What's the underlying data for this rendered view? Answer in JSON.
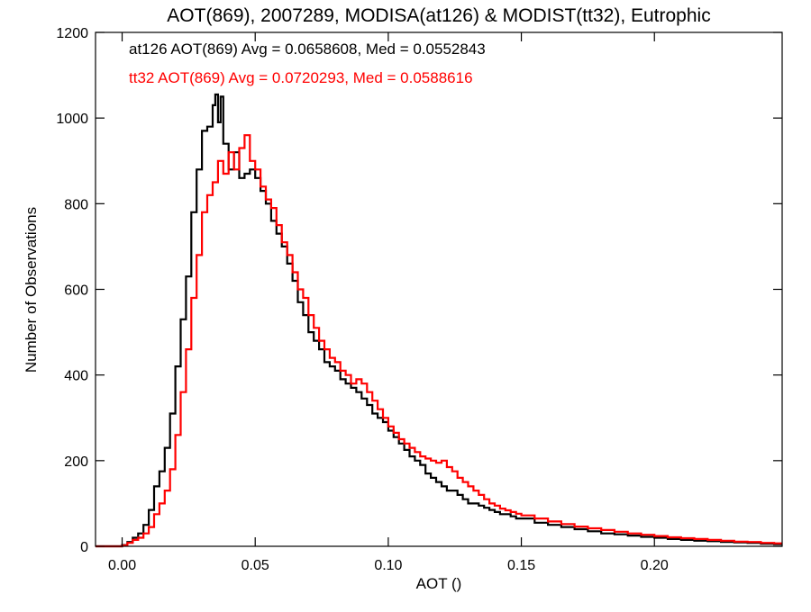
{
  "chart_data": {
    "type": "line",
    "title": "AOT(869), 2007289, MODISA(at126) & MODIST(tt32), Eutrophic",
    "xlabel": "AOT ()",
    "ylabel": "Number of Observations",
    "xlim": [
      -0.01,
      0.248
    ],
    "ylim": [
      0,
      1200
    ],
    "xticks": [
      0.0,
      0.05,
      0.1,
      0.15,
      0.2
    ],
    "xtick_labels": [
      "0.00",
      "0.05",
      "0.10",
      "0.15",
      "0.20"
    ],
    "yticks": [
      0,
      200,
      400,
      600,
      800,
      1000,
      1200
    ],
    "ytick_labels": [
      "0",
      "200",
      "400",
      "600",
      "800",
      "1000",
      "1200"
    ],
    "grid": false,
    "legend_position": "top-left",
    "series": [
      {
        "label": "at126 AOT(869) Avg = 0.0658608, Med = 0.0552843",
        "color": "#000000",
        "points": [
          [
            -0.01,
            0
          ],
          [
            -0.002,
            0
          ],
          [
            0.0,
            3
          ],
          [
            0.002,
            10
          ],
          [
            0.004,
            20
          ],
          [
            0.006,
            30
          ],
          [
            0.008,
            50
          ],
          [
            0.01,
            85
          ],
          [
            0.012,
            140
          ],
          [
            0.014,
            175
          ],
          [
            0.016,
            230
          ],
          [
            0.018,
            310
          ],
          [
            0.02,
            420
          ],
          [
            0.022,
            530
          ],
          [
            0.024,
            630
          ],
          [
            0.026,
            780
          ],
          [
            0.028,
            880
          ],
          [
            0.03,
            970
          ],
          [
            0.032,
            980
          ],
          [
            0.034,
            1030
          ],
          [
            0.035,
            1055
          ],
          [
            0.036,
            990
          ],
          [
            0.037,
            1050
          ],
          [
            0.038,
            940
          ],
          [
            0.04,
            880
          ],
          [
            0.042,
            920
          ],
          [
            0.044,
            860
          ],
          [
            0.046,
            870
          ],
          [
            0.048,
            880
          ],
          [
            0.05,
            860
          ],
          [
            0.052,
            830
          ],
          [
            0.054,
            800
          ],
          [
            0.056,
            760
          ],
          [
            0.058,
            730
          ],
          [
            0.06,
            700
          ],
          [
            0.062,
            660
          ],
          [
            0.064,
            620
          ],
          [
            0.066,
            570
          ],
          [
            0.068,
            540
          ],
          [
            0.07,
            500
          ],
          [
            0.072,
            480
          ],
          [
            0.074,
            460
          ],
          [
            0.076,
            430
          ],
          [
            0.078,
            420
          ],
          [
            0.08,
            410
          ],
          [
            0.082,
            390
          ],
          [
            0.084,
            380
          ],
          [
            0.086,
            370
          ],
          [
            0.088,
            360
          ],
          [
            0.09,
            345
          ],
          [
            0.092,
            330
          ],
          [
            0.094,
            310
          ],
          [
            0.096,
            300
          ],
          [
            0.098,
            290
          ],
          [
            0.1,
            270
          ],
          [
            0.102,
            255
          ],
          [
            0.104,
            240
          ],
          [
            0.106,
            225
          ],
          [
            0.108,
            210
          ],
          [
            0.11,
            200
          ],
          [
            0.112,
            190
          ],
          [
            0.114,
            170
          ],
          [
            0.116,
            160
          ],
          [
            0.118,
            150
          ],
          [
            0.12,
            140
          ],
          [
            0.122,
            130
          ],
          [
            0.124,
            130
          ],
          [
            0.126,
            120
          ],
          [
            0.128,
            110
          ],
          [
            0.13,
            100
          ],
          [
            0.132,
            100
          ],
          [
            0.134,
            95
          ],
          [
            0.136,
            90
          ],
          [
            0.138,
            85
          ],
          [
            0.14,
            80
          ],
          [
            0.142,
            75
          ],
          [
            0.144,
            75
          ],
          [
            0.146,
            70
          ],
          [
            0.148,
            65
          ],
          [
            0.15,
            65
          ],
          [
            0.155,
            55
          ],
          [
            0.16,
            50
          ],
          [
            0.165,
            45
          ],
          [
            0.17,
            40
          ],
          [
            0.175,
            35
          ],
          [
            0.18,
            30
          ],
          [
            0.185,
            28
          ],
          [
            0.19,
            25
          ],
          [
            0.195,
            22
          ],
          [
            0.2,
            20
          ],
          [
            0.205,
            17
          ],
          [
            0.21,
            15
          ],
          [
            0.215,
            13
          ],
          [
            0.22,
            12
          ],
          [
            0.225,
            10
          ],
          [
            0.23,
            9
          ],
          [
            0.235,
            8
          ],
          [
            0.24,
            6
          ],
          [
            0.245,
            5
          ],
          [
            0.248,
            5
          ]
        ]
      },
      {
        "label": "tt32 AOT(869) Avg = 0.0720293, Med = 0.0588616",
        "color": "#ff0000",
        "points": [
          [
            -0.01,
            0
          ],
          [
            0.0,
            2
          ],
          [
            0.002,
            8
          ],
          [
            0.004,
            15
          ],
          [
            0.006,
            20
          ],
          [
            0.008,
            30
          ],
          [
            0.01,
            45
          ],
          [
            0.012,
            75
          ],
          [
            0.014,
            100
          ],
          [
            0.016,
            130
          ],
          [
            0.018,
            180
          ],
          [
            0.02,
            260
          ],
          [
            0.022,
            360
          ],
          [
            0.024,
            460
          ],
          [
            0.026,
            580
          ],
          [
            0.028,
            680
          ],
          [
            0.03,
            780
          ],
          [
            0.032,
            820
          ],
          [
            0.034,
            850
          ],
          [
            0.036,
            900
          ],
          [
            0.038,
            870
          ],
          [
            0.04,
            920
          ],
          [
            0.042,
            880
          ],
          [
            0.044,
            930
          ],
          [
            0.046,
            960
          ],
          [
            0.048,
            900
          ],
          [
            0.05,
            880
          ],
          [
            0.052,
            840
          ],
          [
            0.054,
            810
          ],
          [
            0.056,
            790
          ],
          [
            0.058,
            750
          ],
          [
            0.06,
            710
          ],
          [
            0.062,
            680
          ],
          [
            0.064,
            640
          ],
          [
            0.066,
            600
          ],
          [
            0.068,
            580
          ],
          [
            0.07,
            540
          ],
          [
            0.072,
            510
          ],
          [
            0.074,
            480
          ],
          [
            0.076,
            460
          ],
          [
            0.078,
            440
          ],
          [
            0.08,
            430
          ],
          [
            0.082,
            410
          ],
          [
            0.084,
            400
          ],
          [
            0.086,
            380
          ],
          [
            0.088,
            390
          ],
          [
            0.09,
            380
          ],
          [
            0.092,
            360
          ],
          [
            0.094,
            340
          ],
          [
            0.096,
            320
          ],
          [
            0.098,
            300
          ],
          [
            0.1,
            280
          ],
          [
            0.102,
            265
          ],
          [
            0.104,
            250
          ],
          [
            0.106,
            240
          ],
          [
            0.108,
            230
          ],
          [
            0.11,
            220
          ],
          [
            0.112,
            210
          ],
          [
            0.114,
            205
          ],
          [
            0.116,
            200
          ],
          [
            0.118,
            195
          ],
          [
            0.12,
            200
          ],
          [
            0.122,
            185
          ],
          [
            0.124,
            175
          ],
          [
            0.126,
            160
          ],
          [
            0.128,
            150
          ],
          [
            0.13,
            140
          ],
          [
            0.132,
            130
          ],
          [
            0.134,
            120
          ],
          [
            0.136,
            110
          ],
          [
            0.138,
            100
          ],
          [
            0.14,
            95
          ],
          [
            0.142,
            88
          ],
          [
            0.144,
            84
          ],
          [
            0.146,
            80
          ],
          [
            0.148,
            76
          ],
          [
            0.15,
            72
          ],
          [
            0.155,
            65
          ],
          [
            0.16,
            58
          ],
          [
            0.165,
            52
          ],
          [
            0.17,
            46
          ],
          [
            0.175,
            42
          ],
          [
            0.18,
            38
          ],
          [
            0.185,
            34
          ],
          [
            0.19,
            30
          ],
          [
            0.195,
            27
          ],
          [
            0.2,
            24
          ],
          [
            0.205,
            21
          ],
          [
            0.21,
            19
          ],
          [
            0.215,
            17
          ],
          [
            0.22,
            15
          ],
          [
            0.225,
            13
          ],
          [
            0.23,
            11
          ],
          [
            0.235,
            10
          ],
          [
            0.24,
            8
          ],
          [
            0.245,
            7
          ],
          [
            0.248,
            7
          ]
        ]
      }
    ]
  }
}
